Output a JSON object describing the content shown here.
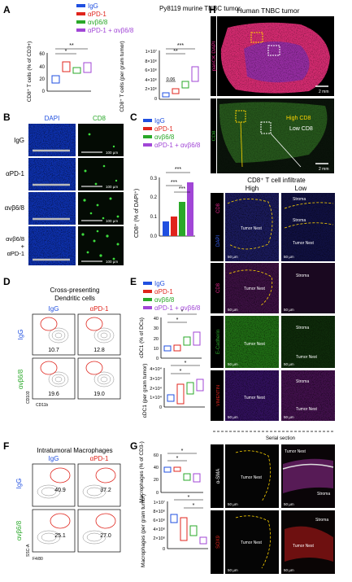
{
  "panels": {
    "A": {
      "letter": "A",
      "strain_title": "Py8119 murine TNBC tumor",
      "legend": [
        {
          "label": "IgG",
          "color": "#1f4fe0"
        },
        {
          "label": "αPD-1",
          "color": "#e0241c"
        },
        {
          "label": "αvβ6/8",
          "color": "#2aa829"
        },
        {
          "label": "αPD-1 + αvβ6/8",
          "color": "#a146d6"
        }
      ],
      "left_ylabel": "CD8⁺ T cells (% of CD3+)",
      "left_ticks": [
        "60",
        "40",
        "20",
        "0"
      ],
      "left_sig": [
        "**",
        "*"
      ],
      "right_ylabel": "CD8⁺ T cells (per gram tumor)",
      "right_ticks": [
        "1×10⁷",
        "8×10⁶",
        "6×10⁶",
        "4×10⁶",
        "2×10⁶",
        "0"
      ],
      "right_sig": [
        "***",
        "**",
        "0.06"
      ]
    },
    "B": {
      "letter": "B",
      "col_dapi": "DAPI",
      "col_cd8": "CD8",
      "rows": [
        "IgG",
        "αPD-1",
        "αvβ6/8",
        "αvβ6/8 + αPD-1"
      ],
      "scale": "100 µm"
    },
    "C": {
      "letter": "C",
      "ylabel": "CD8⁺ (% of DAPI⁺)",
      "ticks": [
        "0.3",
        "0.2",
        "0.1",
        "0.0"
      ],
      "sig": [
        "***",
        "***",
        "***"
      ]
    },
    "D": {
      "letter": "D",
      "title_line1": "Cross-presenting",
      "title_line2": "Dendritic cells",
      "col_labels": [
        "IgG",
        "αPD-1"
      ],
      "row_labels": [
        "IgG",
        "αvβ6/8"
      ],
      "values": [
        "10.7",
        "12.8",
        "19.6",
        "19.0"
      ],
      "xaxis": "CD11b",
      "yaxis": "CD103"
    },
    "E": {
      "letter": "E",
      "legend": [
        "IgG",
        "αPD-1",
        "αvβ6/8",
        "αPD-1 + αvβ6/8"
      ],
      "top_ylabel": "cDC1 (% of DCs)",
      "top_ticks": [
        "40",
        "30",
        "20",
        "10",
        "0"
      ],
      "top_sig": [
        "*",
        "*"
      ],
      "bottom_ylabel": "cDC1 (per gram tumor)",
      "bottom_ticks": [
        "4×10⁴",
        "3×10⁴",
        "2×10⁴",
        "1×10⁴",
        "0"
      ],
      "bottom_sig": [
        "*",
        "*"
      ]
    },
    "F": {
      "letter": "F",
      "title": "Intratumoral Macrophages",
      "col_labels": [
        "IgG",
        "αPD-1"
      ],
      "row_labels": [
        "IgG",
        "αvβ6/8"
      ],
      "values": [
        "40.9",
        "37.2",
        "25.1",
        "27.0"
      ],
      "xaxis": "F4/80",
      "yaxis": "SSC-A"
    },
    "G": {
      "letter": "G",
      "top_ylabel": "Macrophages (% of CD3-)",
      "top_ticks": [
        "60",
        "40",
        "20",
        "0"
      ],
      "top_sig": [
        "*",
        "*"
      ],
      "bottom_ylabel": "Macrophages (per gram tumor)",
      "bottom_ticks": [
        "1×10⁷",
        "8×10⁶",
        "6×10⁶",
        "4×10⁶",
        "2×10⁶",
        "0"
      ],
      "bottom_sig": [
        "*",
        "*"
      ]
    },
    "H": {
      "letter": "H",
      "title": "Human TNBC tumor",
      "top_side": "panCK DAPI",
      "mid_side": "CD8",
      "high_label": "High CD8",
      "low_label": "Low CD8",
      "scale": "2 mm",
      "infiltrate_title": "CD8⁺ T cell infiltrate",
      "col_labels": [
        "High",
        "Low"
      ],
      "marker_rows": [
        "CD8",
        "DAPI",
        "CD8",
        "E-Cadherin",
        "VIMENTIN"
      ],
      "tumor_nest": "Tumor Nest",
      "stroma": "Stroma",
      "small_scale": "50 µm",
      "serial": "Serial section",
      "serial_rows": [
        "α-SMA",
        "SOX9"
      ]
    }
  }
}
